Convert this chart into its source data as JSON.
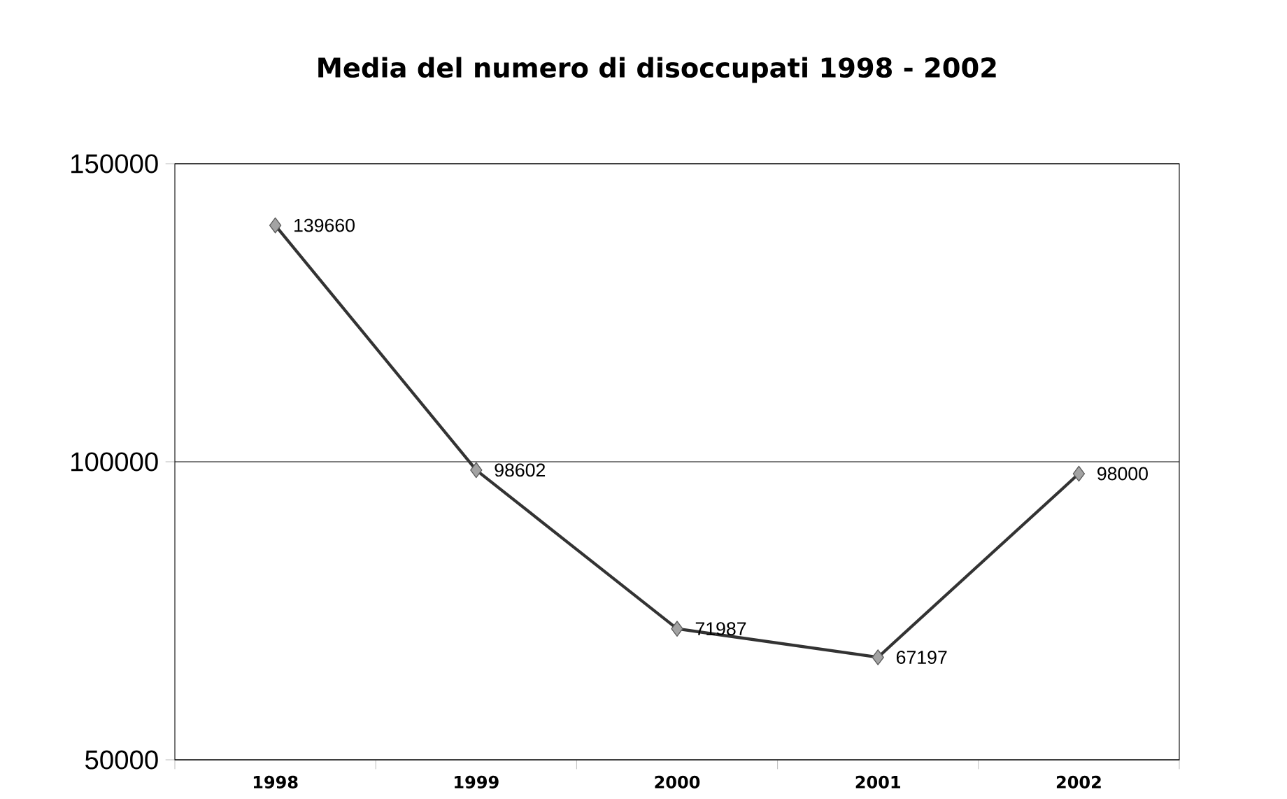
{
  "chart_data": {
    "type": "line",
    "title": "Media del numero di disoccupati 1998 - 2002",
    "categories": [
      "1998",
      "1999",
      "2000",
      "2001",
      "2002"
    ],
    "values": [
      139660,
      98602,
      71987,
      67197,
      98000
    ],
    "color": "#333333",
    "ylim": [
      50000,
      150000
    ],
    "yticks": [
      50000,
      100000,
      150000
    ],
    "grid": "y",
    "marker": "diamond",
    "line_style": "solid",
    "data_labels": true
  }
}
